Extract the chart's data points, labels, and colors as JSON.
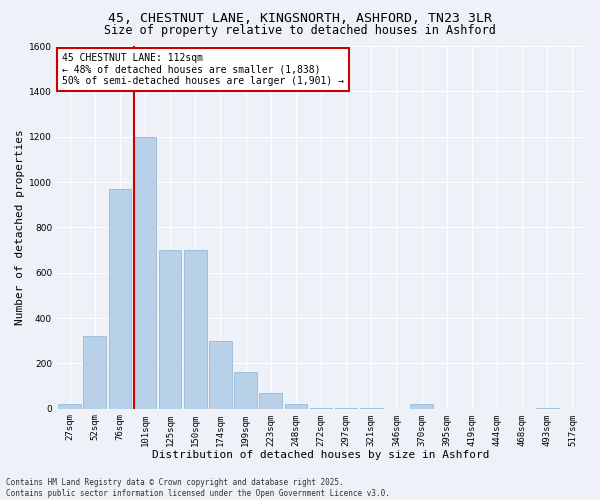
{
  "title_line1": "45, CHESTNUT LANE, KINGSNORTH, ASHFORD, TN23 3LR",
  "title_line2": "Size of property relative to detached houses in Ashford",
  "xlabel": "Distribution of detached houses by size in Ashford",
  "ylabel": "Number of detached properties",
  "categories": [
    "27sqm",
    "52sqm",
    "76sqm",
    "101sqm",
    "125sqm",
    "150sqm",
    "174sqm",
    "199sqm",
    "223sqm",
    "248sqm",
    "272sqm",
    "297sqm",
    "321sqm",
    "346sqm",
    "370sqm",
    "395sqm",
    "419sqm",
    "444sqm",
    "468sqm",
    "493sqm",
    "517sqm"
  ],
  "values": [
    20,
    320,
    970,
    1200,
    700,
    700,
    300,
    160,
    70,
    20,
    5,
    5,
    1,
    0,
    20,
    0,
    0,
    0,
    0,
    5,
    0
  ],
  "bar_color": "#b8d0e8",
  "bar_edge_color": "#8ab4d4",
  "background_color": "#eef2f8",
  "grid_color": "#ffffff",
  "vline_color": "#cc0000",
  "annotation_text": "45 CHESTNUT LANE: 112sqm\n← 48% of detached houses are smaller (1,838)\n50% of semi-detached houses are larger (1,901) →",
  "annotation_box_color": "#ffffff",
  "annotation_border_color": "#cc0000",
  "ylim": [
    0,
    1600
  ],
  "yticks": [
    0,
    200,
    400,
    600,
    800,
    1000,
    1200,
    1400,
    1600
  ],
  "footer_text": "Contains HM Land Registry data © Crown copyright and database right 2025.\nContains public sector information licensed under the Open Government Licence v3.0.",
  "title_fontsize": 9.5,
  "subtitle_fontsize": 8.5,
  "axis_label_fontsize": 8,
  "tick_fontsize": 6.5,
  "annotation_fontsize": 7,
  "footer_fontsize": 5.5
}
